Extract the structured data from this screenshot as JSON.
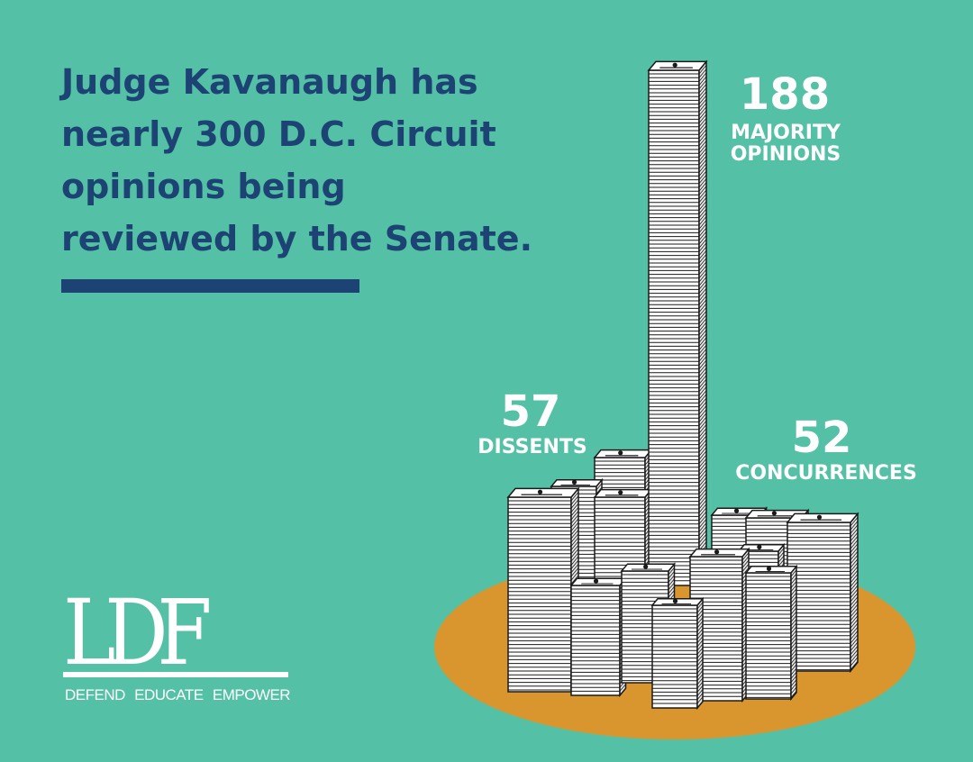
{
  "headline": {
    "lines": [
      "Judge Kavanaugh has",
      "nearly 300 D.C. Circuit",
      "opinions being",
      "reviewed by the Senate."
    ]
  },
  "chart_data": {
    "type": "bar",
    "categories": [
      "MAJORITY OPINIONS",
      "DISSENTS",
      "CONCURRENCES"
    ],
    "values": [
      188,
      57,
      52
    ],
    "labels": [
      {
        "value": "188",
        "text_lines": [
          "MAJORITY",
          "OPINIONS"
        ]
      },
      {
        "value": "57",
        "text_lines": [
          "DISSENTS"
        ]
      },
      {
        "value": "52",
        "text_lines": [
          "CONCURRENCES"
        ]
      }
    ],
    "title": "",
    "colors": {
      "background": "#54c0a5",
      "base": "#d9962e",
      "stack_face": "#ffffff",
      "stack_line": "#1a1a1a"
    }
  },
  "logo": {
    "mark": "LDF",
    "tagline": [
      "DEFEND",
      "EDUCATE",
      "EMPOWER"
    ]
  },
  "colors": {
    "headline": "#1c4373",
    "rule": "#1c4373"
  }
}
